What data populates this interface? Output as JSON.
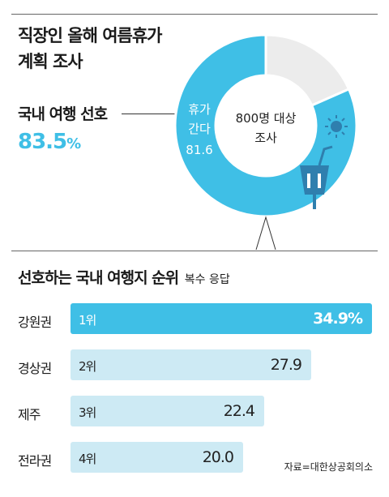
{
  "title_line1": "직장인 올해 여름휴가",
  "title_line2": "계획 조사",
  "preference": {
    "label": "국내 여행 선호",
    "value": "83.5",
    "unit": "%"
  },
  "donut": {
    "center_line1": "800명 대상",
    "center_line2": "조사",
    "seg_label_line1": "휴가",
    "seg_label_line2": "간다",
    "seg_value": "81.6"
  },
  "section_title": "선호하는 국내 여행지 순위",
  "section_note": "복수 응답",
  "source": "자료=대한상공회의소",
  "colors": {
    "accent": "#3fbfe6",
    "accent_light": "#cdeaf4",
    "donut_gray": "#ececec",
    "icon_blue": "#2f7fae"
  },
  "icons": [
    "sun-icon",
    "drink-cup-icon"
  ],
  "chart_data": [
    {
      "type": "pie",
      "categories": [
        "휴가 간다",
        ""
      ],
      "values": [
        81.6,
        18.4
      ]
    },
    {
      "type": "bar",
      "categories": [
        "강원권",
        "경상권",
        "제주",
        "전라권"
      ],
      "ranks": [
        "1위",
        "2위",
        "3위",
        "4위"
      ],
      "values": [
        34.9,
        27.9,
        22.4,
        20.0
      ],
      "value_labels": [
        "34.9%",
        "27.9",
        "22.4",
        "20.0"
      ]
    }
  ]
}
